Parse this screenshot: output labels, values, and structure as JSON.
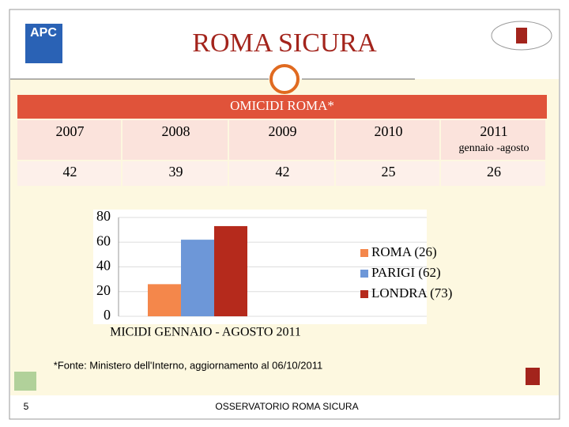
{
  "header": {
    "title": "ROMA SICURA",
    "logo_text": "APC"
  },
  "table": {
    "title": "OMICIDI ROMA*",
    "columns": [
      "2007",
      "2008",
      "2009",
      "2010",
      "2011"
    ],
    "column_notes": [
      null,
      null,
      null,
      null,
      "gennaio -agosto"
    ],
    "rows": [
      [
        "42",
        "39",
        "42",
        "25",
        "26"
      ]
    ]
  },
  "chart_data": {
    "type": "bar",
    "categories": [
      "MICIDI GENNAIO - AGOSTO 2011"
    ],
    "series": [
      {
        "name": "ROMA (26)",
        "color": "#f4874b",
        "values": [
          26
        ]
      },
      {
        "name": "PARIGI (62)",
        "color": "#6d97d8",
        "values": [
          62
        ]
      },
      {
        "name": "LONDRA (73)",
        "color": "#b52a1c",
        "values": [
          73
        ]
      }
    ],
    "ylim": [
      0,
      80
    ],
    "yticks": [
      0,
      20,
      40,
      60,
      80
    ],
    "legend": "right"
  },
  "footnote": "*Fonte: Ministero dell'Interno, aggiornamento al 06/10/2011",
  "footer": "OSSERVATORIO ROMA SICURA",
  "page_number": "5"
}
